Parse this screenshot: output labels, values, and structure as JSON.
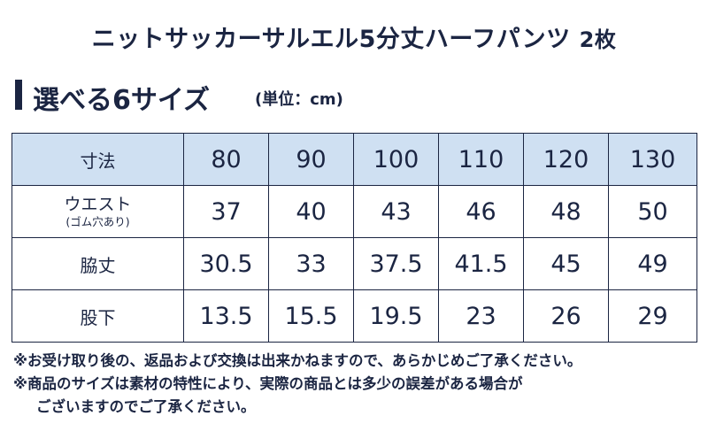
{
  "title": {
    "text": "ニットサッカーサルエル5分丈ハーフパンツ",
    "count": "2枚"
  },
  "section": {
    "heading": "選べる6サイズ",
    "unit": "(単位：cm)"
  },
  "table": {
    "header": {
      "label": "寸法",
      "sizes": [
        "80",
        "90",
        "100",
        "110",
        "120",
        "130"
      ]
    },
    "rows": [
      {
        "label": "ウエスト",
        "sublabel": "(ゴム穴あり)",
        "values": [
          "37",
          "40",
          "43",
          "46",
          "48",
          "50"
        ]
      },
      {
        "label": "脇丈",
        "values": [
          "30.5",
          "33",
          "37.5",
          "41.5",
          "45",
          "49"
        ]
      },
      {
        "label": "股下",
        "values": [
          "13.5",
          "15.5",
          "19.5",
          "23",
          "26",
          "29"
        ]
      }
    ]
  },
  "notes": {
    "line1": "※お受け取り後の、返品および交換は出来かねますので、あらかじめご了承ください。",
    "line2": "※商品のサイズは素材の特性により、実際の商品とは多少の誤差がある場合が",
    "line3": "ございますのでご了承ください。"
  }
}
